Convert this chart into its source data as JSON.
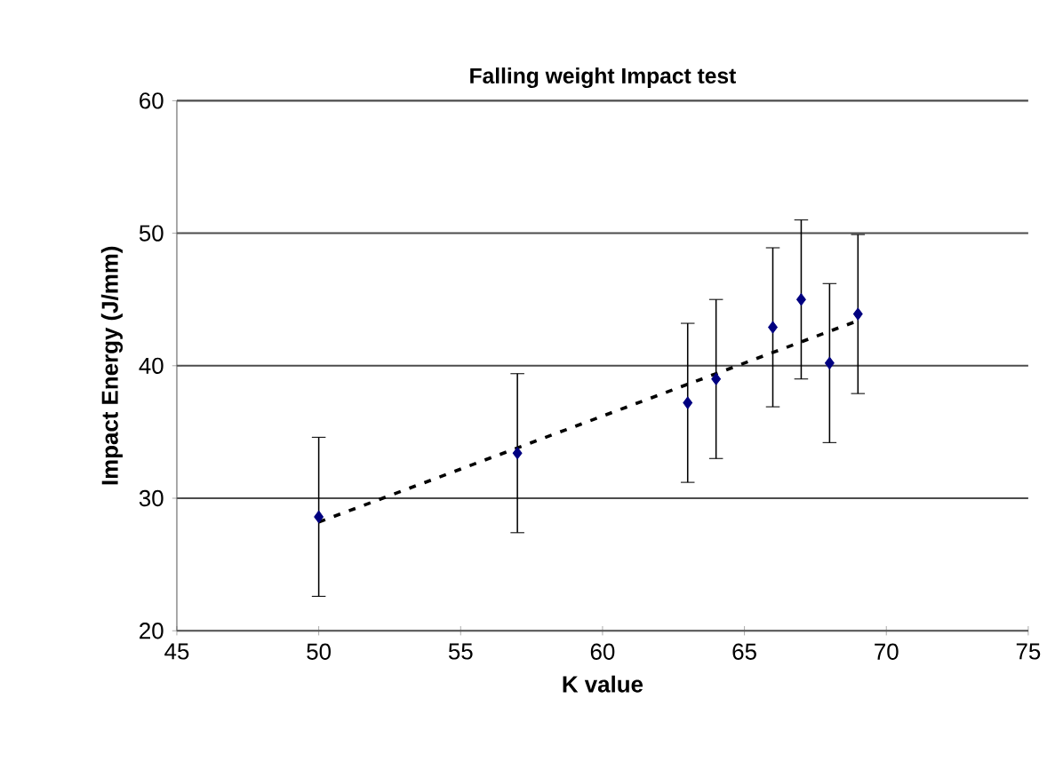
{
  "chart_data": {
    "type": "scatter",
    "title": "Falling weight Impact test",
    "xlabel": "K value",
    "ylabel": "Impact Energy (J/mm)",
    "xlim": [
      45,
      75
    ],
    "xticks": [
      45,
      50,
      55,
      60,
      65,
      70,
      75
    ],
    "ylim": [
      20,
      60
    ],
    "yticks": [
      20,
      30,
      40,
      50,
      60
    ],
    "grid": "y",
    "series": [
      {
        "color": "#000080",
        "marker": "diamond",
        "x": [
          50,
          57,
          63,
          64,
          66,
          67,
          68,
          69
        ],
        "values": [
          28.6,
          33.4,
          37.2,
          39.0,
          42.9,
          45.0,
          40.2,
          43.9
        ],
        "errors": [
          6,
          6,
          6,
          6,
          6,
          6,
          6,
          6
        ]
      },
      {
        "type": "line",
        "color": "#000000",
        "marker": "none",
        "line_style": "dashed",
        "x": [
          50,
          69
        ],
        "values": [
          28.2,
          43.4
        ]
      }
    ]
  }
}
